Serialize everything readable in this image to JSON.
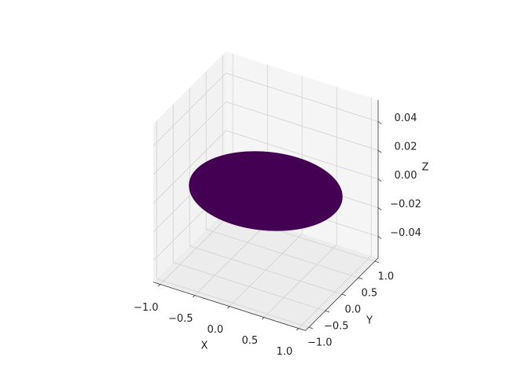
{
  "chart_data": {
    "type": "surface3d",
    "xlabel": "X",
    "ylabel": "Y",
    "zlabel": "Z",
    "xlim": [
      -1.1,
      1.1
    ],
    "ylim": [
      -1.1,
      1.1
    ],
    "zlim": [
      -0.055,
      0.055
    ],
    "xticks": [
      {
        "value": -1.0,
        "label": "−1.0"
      },
      {
        "value": -0.5,
        "label": "−0.5"
      },
      {
        "value": 0.0,
        "label": "0.0"
      },
      {
        "value": 0.5,
        "label": "0.5"
      },
      {
        "value": 1.0,
        "label": "1.0"
      }
    ],
    "yticks": [
      {
        "value": -1.0,
        "label": "−1.0"
      },
      {
        "value": -0.5,
        "label": "−0.5"
      },
      {
        "value": 0.0,
        "label": "0.0"
      },
      {
        "value": 0.5,
        "label": "0.5"
      },
      {
        "value": 1.0,
        "label": "1.0"
      }
    ],
    "zticks": [
      {
        "value": -0.04,
        "label": "−0.04"
      },
      {
        "value": -0.02,
        "label": "−0.02"
      },
      {
        "value": 0.0,
        "label": "0.00"
      },
      {
        "value": 0.02,
        "label": "0.02"
      },
      {
        "value": 0.04,
        "label": "0.04"
      }
    ],
    "grid": true,
    "surface": {
      "color": "#440154",
      "radius": 1,
      "z": 0
    }
  }
}
